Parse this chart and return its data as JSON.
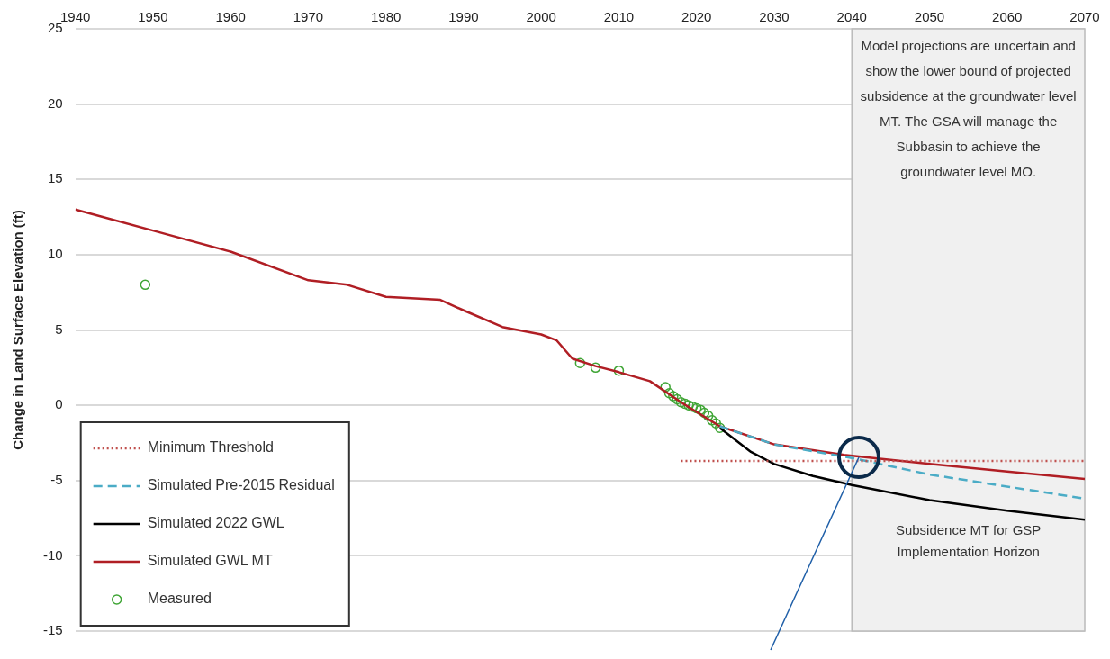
{
  "chart_data": {
    "type": "line",
    "ylabel": "Change in Land Surface Elevation (ft)",
    "xlim": [
      1940,
      2070
    ],
    "xticks": [
      1940,
      1950,
      1960,
      1970,
      1980,
      1990,
      2000,
      2010,
      2020,
      2030,
      2040,
      2050,
      2060,
      2070
    ],
    "ylim": [
      -15,
      25
    ],
    "yticks": [
      -15,
      -10,
      -5,
      0,
      5,
      10,
      15,
      20,
      25
    ],
    "grid": "y",
    "legend": "bottom left",
    "series": [
      {
        "name": "Minimum Threshold",
        "color": "#c0504d",
        "line_style": "dotted",
        "marker": "none",
        "x": [
          2018,
          2070
        ],
        "values": [
          -3.7,
          -3.7
        ]
      },
      {
        "name": "Simulated Pre-2015 Residual",
        "color": "#4bacc6",
        "line_style": "dashed",
        "marker": "none",
        "x": [
          2023,
          2030,
          2040,
          2050,
          2060,
          2070
        ],
        "values": [
          -1.4,
          -2.6,
          -3.5,
          -4.6,
          -5.4,
          -6.2
        ]
      },
      {
        "name": "Simulated 2022 GWL",
        "color": "#000000",
        "line_style": "solid",
        "marker": "none",
        "x": [
          2023,
          2027,
          2030,
          2035,
          2040,
          2050,
          2060,
          2070
        ],
        "values": [
          -1.5,
          -3.1,
          -3.9,
          -4.7,
          -5.3,
          -6.3,
          -7.0,
          -7.6
        ]
      },
      {
        "name": "Simulated GWL MT",
        "color": "#b01e24",
        "line_style": "solid",
        "marker": "none",
        "x": [
          1940,
          1950,
          1960,
          1970,
          1975,
          1980,
          1987,
          1990,
          1995,
          2000,
          2002,
          2004,
          2007,
          2010,
          2014,
          2018,
          2023,
          2030,
          2039,
          2050,
          2060,
          2070
        ],
        "values": [
          13,
          11.6,
          10.2,
          8.3,
          8.0,
          7.2,
          7.0,
          6.3,
          5.2,
          4.7,
          4.3,
          3.1,
          2.6,
          2.2,
          1.6,
          0.2,
          -1.4,
          -2.6,
          -3.3,
          -3.9,
          -4.4,
          -4.9
        ]
      },
      {
        "name": "Measured",
        "type": "scatter",
        "color": "#3fa535",
        "marker": "circle",
        "x": [
          1949,
          2005,
          2007,
          2010,
          2016,
          2016.5,
          2017,
          2017.5,
          2018,
          2018.5,
          2019,
          2019.5,
          2020,
          2020.5,
          2021,
          2021.5,
          2022,
          2022.5,
          2023
        ],
        "values": [
          8,
          2.8,
          2.5,
          2.3,
          1.2,
          0.8,
          0.6,
          0.4,
          0.2,
          0.1,
          0,
          -0.1,
          -0.2,
          -0.3,
          -0.5,
          -0.7,
          -1.0,
          -1.2,
          -1.5
        ]
      }
    ],
    "bands": [
      {
        "axis": "x",
        "from": 2040,
        "to": 2070,
        "color": "#f0f0f0"
      }
    ],
    "annotations": [
      "Model projections are uncertain and show the lower bound of projected subsidence at the groundwater level MT. The GSA will manage the Subbasin to achieve the groundwater level MO.",
      "Subsidence MT for GSP Implementation Horizon"
    ]
  }
}
